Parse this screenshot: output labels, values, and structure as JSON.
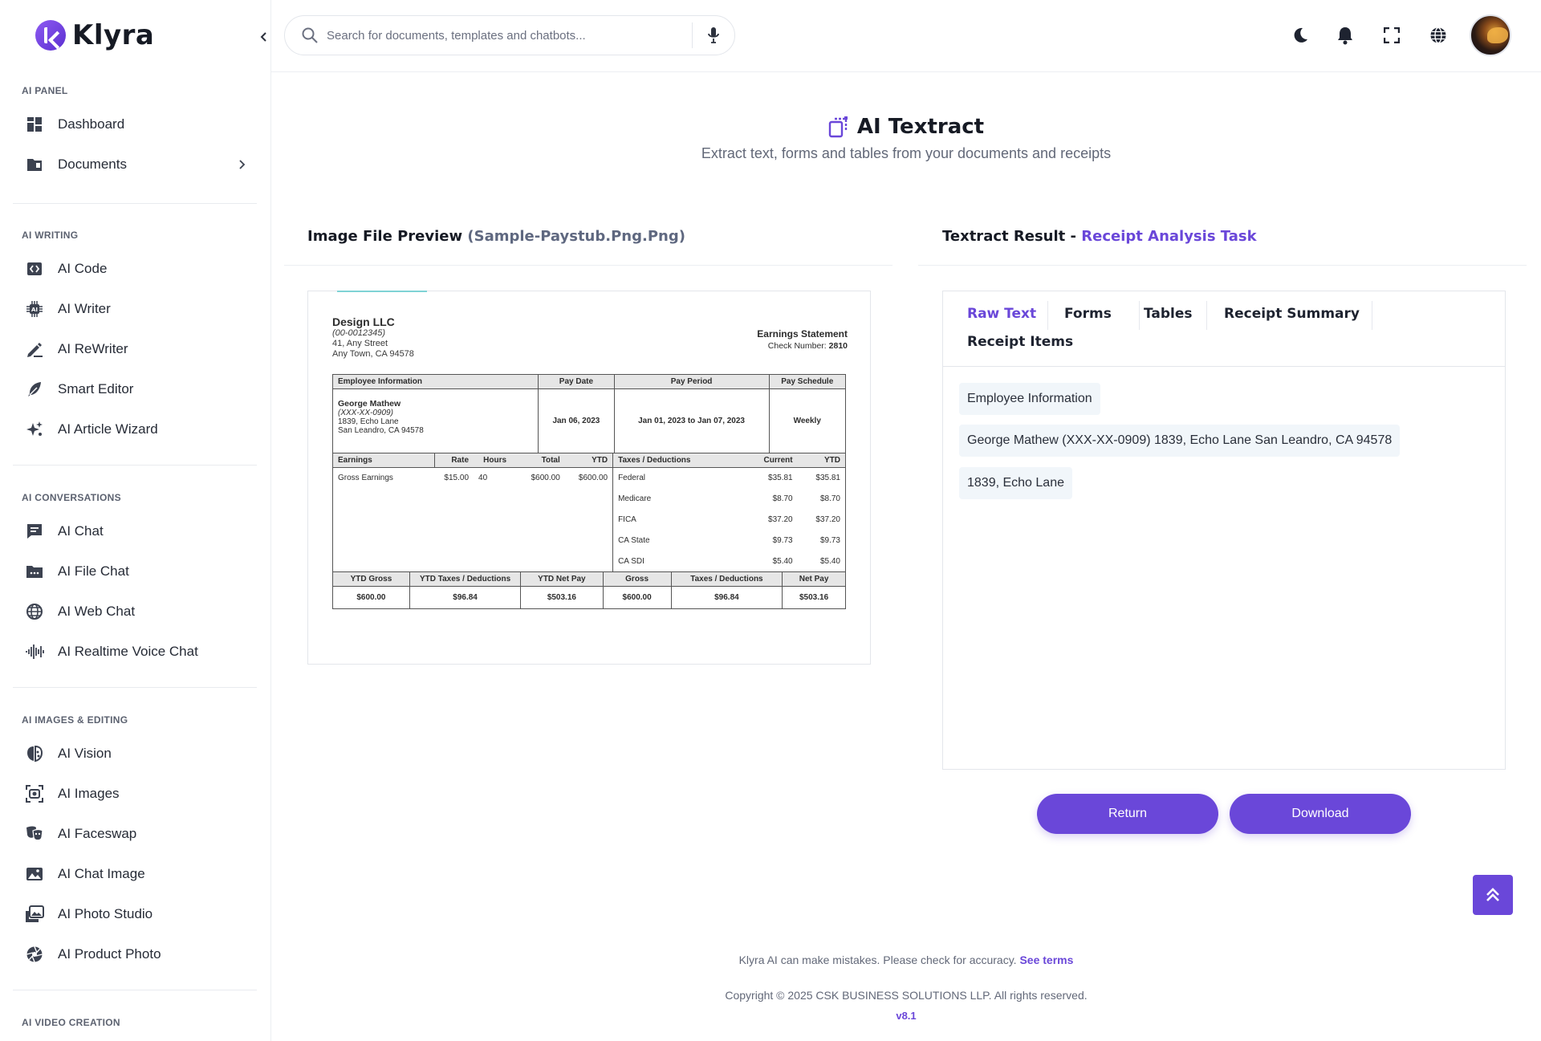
{
  "app": {
    "name": "Klyra"
  },
  "sidebar": {
    "sections": [
      {
        "title": "AI PANEL",
        "items": [
          {
            "label": "Dashboard",
            "icon": "dashboard-icon"
          },
          {
            "label": "Documents",
            "icon": "folder-icon",
            "has_submenu": true
          }
        ]
      },
      {
        "title": "AI WRITING",
        "items": [
          {
            "label": "AI Code",
            "icon": "code-icon"
          },
          {
            "label": "AI Writer",
            "icon": "chip-icon"
          },
          {
            "label": "AI ReWriter",
            "icon": "pen-icon"
          },
          {
            "label": "Smart Editor",
            "icon": "feather-icon"
          },
          {
            "label": "AI Article Wizard",
            "icon": "sparkles-icon"
          }
        ]
      },
      {
        "title": "AI CONVERSATIONS",
        "items": [
          {
            "label": "AI Chat",
            "icon": "chat-icon"
          },
          {
            "label": "AI File Chat",
            "icon": "file-chat-icon"
          },
          {
            "label": "AI Web Chat",
            "icon": "globe-icon"
          },
          {
            "label": "AI Realtime Voice Chat",
            "icon": "voice-wave-icon"
          }
        ]
      },
      {
        "title": "AI IMAGES & EDITING",
        "items": [
          {
            "label": "AI Vision",
            "icon": "brain-icon"
          },
          {
            "label": "AI Images",
            "icon": "image-scan-icon"
          },
          {
            "label": "AI Faceswap",
            "icon": "masks-icon"
          },
          {
            "label": "AI Chat Image",
            "icon": "picture-icon"
          },
          {
            "label": "AI Photo Studio",
            "icon": "photo-stack-icon"
          },
          {
            "label": "AI Product Photo",
            "icon": "aperture-icon"
          }
        ]
      },
      {
        "title": "AI VIDEO CREATION",
        "items": []
      }
    ]
  },
  "header": {
    "search_placeholder": "Search for documents, templates and chatbots..."
  },
  "page": {
    "title": "AI Textract",
    "subtitle": "Extract text, forms and tables from your documents and receipts",
    "preview_heading": "Image File Preview",
    "preview_filename": "(Sample-Paystub.Png.Png)",
    "result_heading": "Textract Result -",
    "result_task": "Receipt Analysis Task"
  },
  "paystub": {
    "company": "Design LLC",
    "company_id": "(00-0012345)",
    "address1": "41, Any Street",
    "address2": "Any Town, CA 94578",
    "statement_title": "Earnings Statement",
    "check_label": "Check Number:",
    "check_number": "2810",
    "info_headers": [
      "Employee Information",
      "Pay Date",
      "Pay Period",
      "Pay Schedule"
    ],
    "employee_name": "George Mathew",
    "employee_ssn": "(XXX-XX-0909)",
    "employee_addr1": "1839, Echo Lane",
    "employee_addr2": "San Leandro, CA 94578",
    "pay_date": "Jan 06, 2023",
    "pay_period": "Jan 01, 2023 to Jan 07, 2023",
    "pay_schedule": "Weekly",
    "earn_headers": [
      "Earnings",
      "Rate",
      "Hours",
      "Total",
      "YTD"
    ],
    "earnings": {
      "label": "Gross Earnings",
      "rate": "$15.00",
      "hours": "40",
      "total": "$600.00",
      "ytd": "$600.00"
    },
    "tax_headers": [
      "Taxes / Deductions",
      "Current",
      "YTD"
    ],
    "taxes": [
      {
        "label": "Federal",
        "current": "$35.81",
        "ytd": "$35.81"
      },
      {
        "label": "Medicare",
        "current": "$8.70",
        "ytd": "$8.70"
      },
      {
        "label": "FICA",
        "current": "$37.20",
        "ytd": "$37.20"
      },
      {
        "label": "CA State",
        "current": "$9.73",
        "ytd": "$9.73"
      },
      {
        "label": "CA SDI",
        "current": "$5.40",
        "ytd": "$5.40"
      }
    ],
    "summary_headers": [
      "YTD Gross",
      "YTD Taxes / Deductions",
      "YTD Net Pay",
      "Gross",
      "Taxes / Deductions",
      "Net Pay"
    ],
    "summary_values": [
      "$600.00",
      "$96.84",
      "$503.16",
      "$600.00",
      "$96.84",
      "$503.16"
    ]
  },
  "result": {
    "tabs": [
      "Raw Text",
      "Forms",
      "Tables",
      "Receipt Summary",
      "Receipt Items"
    ],
    "active_tab": "Raw Text",
    "lines": [
      "Employee Information",
      "George Mathew (XXX-XX-0909) 1839, Echo Lane San Leandro, CA 94578",
      "1839, Echo Lane"
    ]
  },
  "actions": {
    "return_label": "Return",
    "download_label": "Download"
  },
  "footer": {
    "note": "Klyra AI can make mistakes. Please check for accuracy.",
    "terms_link": "See terms",
    "copyright": "Copyright © 2025 CSK BUSINESS SOLUTIONS LLP. All rights reserved.",
    "version": "v8.1"
  },
  "colors": {
    "accent": "#6a47d9",
    "text": "#1f2430",
    "muted": "#626878"
  }
}
